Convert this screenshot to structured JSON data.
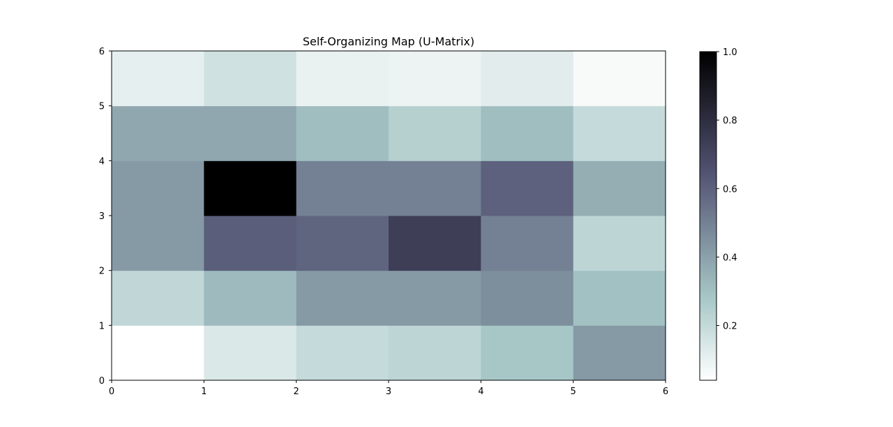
{
  "chart_data": {
    "type": "heatmap",
    "title": "Self-Organizing Map (U-Matrix)",
    "xlabel": "",
    "ylabel": "",
    "x_ticks": [
      0,
      1,
      2,
      3,
      4,
      5,
      6
    ],
    "y_ticks": [
      0,
      1,
      2,
      3,
      4,
      5,
      6
    ],
    "xlim": [
      0,
      6
    ],
    "ylim": [
      0,
      6
    ],
    "colormap": "bone_r",
    "colorbar": {
      "range": [
        0.04,
        1.0
      ],
      "ticks": [
        0.2,
        0.4,
        0.6,
        0.8,
        1.0
      ],
      "tick_labels": [
        "0.2",
        "0.4",
        "0.6",
        "0.8",
        "1.0"
      ]
    },
    "grid": false,
    "values_rows_bottom_to_top": [
      [
        0.04,
        0.14,
        0.2,
        0.22,
        0.28,
        0.42
      ],
      [
        0.21,
        0.32,
        0.42,
        0.42,
        0.46,
        0.3
      ],
      [
        0.42,
        0.61,
        0.59,
        0.73,
        0.5,
        0.22
      ],
      [
        0.42,
        1.0,
        0.5,
        0.5,
        0.6,
        0.36
      ],
      [
        0.38,
        0.38,
        0.31,
        0.24,
        0.31,
        0.2
      ],
      [
        0.11,
        0.17,
        0.1,
        0.09,
        0.12,
        0.06
      ]
    ]
  }
}
